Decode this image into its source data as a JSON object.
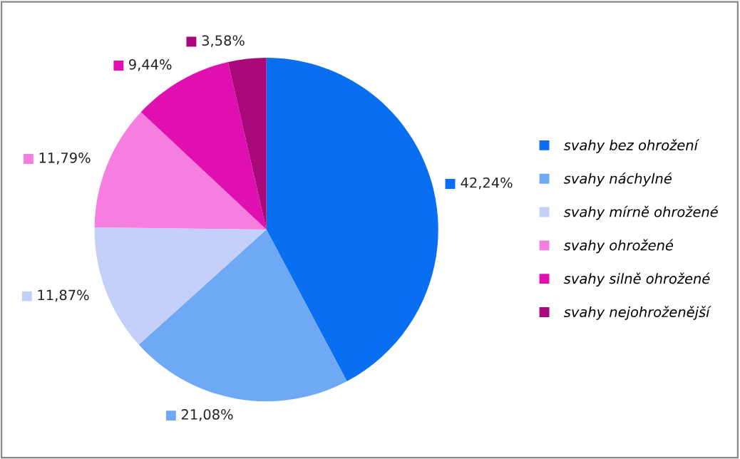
{
  "chart_data": {
    "type": "pie",
    "categories": [
      "svahy bez ohrožení",
      "svahy náchylné",
      "svahy mírně ohrožené",
      "svahy ohrožené",
      "svahy silně ohrožené",
      "svahy nejohroženější"
    ],
    "values": [
      42.24,
      21.08,
      11.87,
      11.79,
      9.44,
      3.58
    ],
    "value_labels": [
      "42,24%",
      "21,08%",
      "11,87%",
      "11,79%",
      "9,44%",
      "3,58%"
    ],
    "colors": [
      "#0a6ef0",
      "#6fa8f5",
      "#c4cffa",
      "#f57ee0",
      "#e010b0",
      "#a8087a"
    ],
    "legend": "right"
  }
}
